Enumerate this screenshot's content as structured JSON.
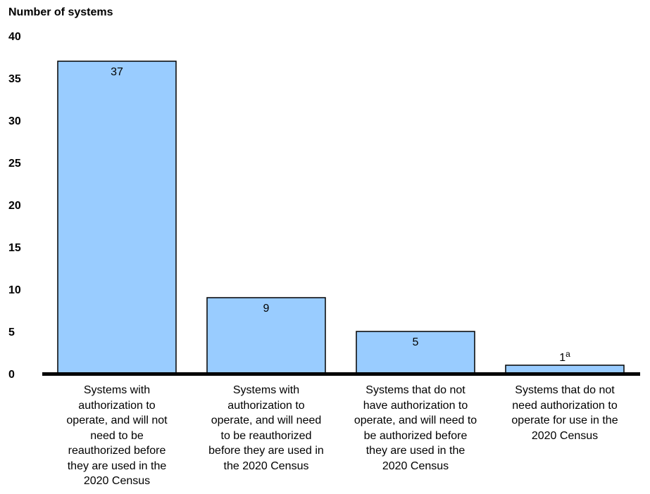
{
  "chart_data": {
    "type": "bar",
    "ylabel": "Number of systems",
    "xlabel": "",
    "ylim": [
      0,
      40
    ],
    "yticks": [
      0,
      5,
      10,
      15,
      20,
      25,
      30,
      35,
      40
    ],
    "grid": false,
    "categories": [
      "Systems with authorization to operate, and will not need to be reauthorized before they are used in the 2020 Census",
      "Systems with authorization to operate, and will need to be reauthorized before they are used in the 2020 Census",
      "Systems that do not have authorization to operate, and will need to be authorized before they are used in the 2020 Census",
      "Systems that do not need authorization to operate for use in the 2020 Census"
    ],
    "category_lines": [
      [
        "Systems with",
        "authorization to",
        "operate, and will not",
        "need to be",
        "reauthorized before",
        "they are used in the",
        "2020 Census"
      ],
      [
        "Systems with",
        "authorization to",
        "operate, and will need",
        "to be reauthorized",
        "before they are used in",
        "the 2020 Census"
      ],
      [
        "Systems that do not",
        "have authorization to",
        "operate, and will need to",
        "be authorized before",
        "they are used in the",
        "2020 Census"
      ],
      [
        "Systems that do not",
        "need authorization to",
        "operate for use in the",
        "2020 Census"
      ]
    ],
    "values": [
      37,
      9,
      5,
      1
    ],
    "data_labels": [
      "37",
      "9",
      "5",
      "1"
    ],
    "data_label_superscripts": [
      "",
      "",
      "",
      "a"
    ],
    "bar_color": "#99ccff",
    "axis_color": "#000000"
  }
}
